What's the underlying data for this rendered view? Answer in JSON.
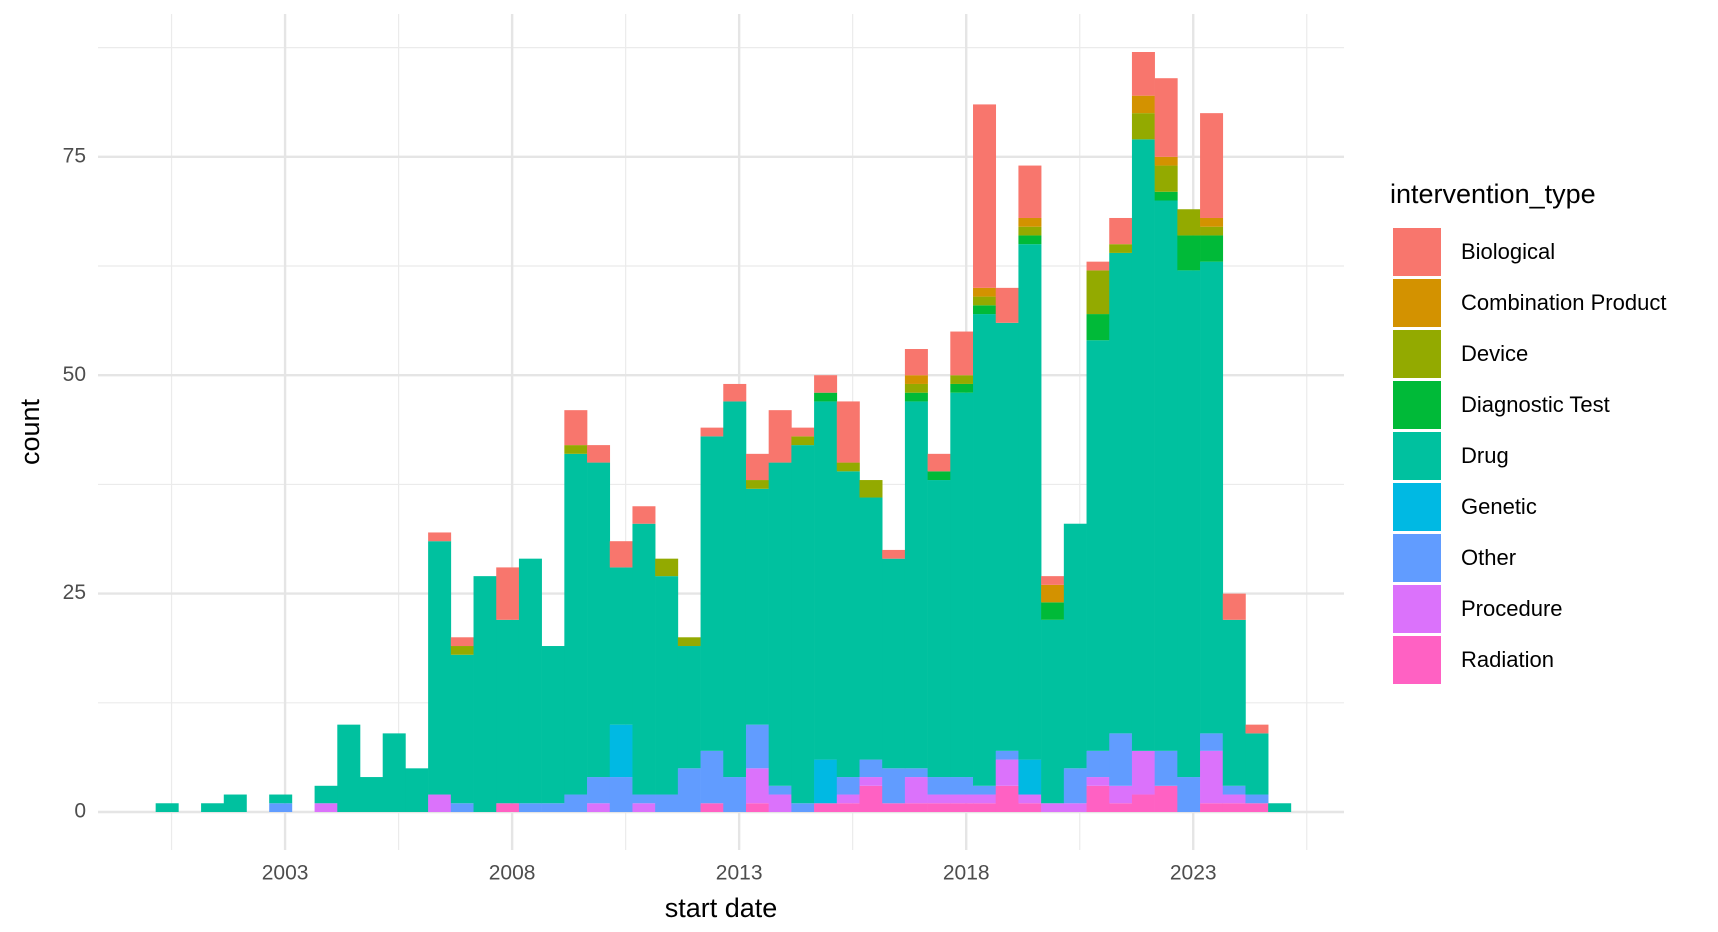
{
  "chart_data": {
    "type": "histogram",
    "stacked": true,
    "xlabel": "start date",
    "ylabel": "count",
    "legend_title": "intervention_type",
    "legend_position": "right",
    "grid": true,
    "bins": [
      2000.15,
      2000.65,
      2001.15,
      2001.65,
      2002.15,
      2002.65,
      2003.15,
      2003.65,
      2004.15,
      2004.65,
      2005.15,
      2005.65,
      2006.15,
      2006.65,
      2007.15,
      2007.65,
      2008.15,
      2008.65,
      2009.15,
      2009.65,
      2010.15,
      2010.65,
      2011.15,
      2011.65,
      2012.15,
      2012.65,
      2013.15,
      2013.65,
      2014.15,
      2014.65,
      2015.15,
      2015.65,
      2016.15,
      2016.65,
      2017.15,
      2017.65,
      2018.15,
      2018.65,
      2019.15,
      2019.65,
      2020.15,
      2020.65,
      2021.15,
      2021.65,
      2022.15,
      2022.65,
      2023.15,
      2023.65,
      2024.15,
      2024.65,
      2025.15
    ],
    "xlim": [
      1998.88,
      2026.32
    ],
    "xticks": [
      2003,
      2008,
      2013,
      2018,
      2023
    ],
    "ylim": [
      -4.35,
      91.35
    ],
    "yticks": [
      0,
      25,
      50,
      75
    ],
    "series": [
      {
        "name": "Biological",
        "color": "#F8766D",
        "values": [
          0,
          0,
          0,
          0,
          0,
          0,
          0,
          0,
          0,
          0,
          0,
          0,
          1,
          1,
          0,
          6,
          0,
          0,
          4,
          2,
          3,
          2,
          0,
          0,
          1,
          2,
          3,
          6,
          1,
          2,
          7,
          0,
          1,
          3,
          2,
          5,
          21,
          4,
          6,
          1,
          0,
          1,
          3,
          5,
          9,
          0,
          12,
          3,
          1,
          0
        ]
      },
      {
        "name": "Combination Product",
        "color": "#D39200",
        "values": [
          0,
          0,
          0,
          0,
          0,
          0,
          0,
          0,
          0,
          0,
          0,
          0,
          0,
          0,
          0,
          0,
          0,
          0,
          0,
          0,
          0,
          0,
          0,
          0,
          0,
          0,
          0,
          0,
          0,
          0,
          0,
          0,
          0,
          1,
          0,
          0,
          1,
          0,
          1,
          2,
          0,
          0,
          0,
          2,
          1,
          0,
          1,
          0,
          0,
          0
        ]
      },
      {
        "name": "Device",
        "color": "#93AA00",
        "values": [
          0,
          0,
          0,
          0,
          0,
          0,
          0,
          0,
          0,
          0,
          0,
          0,
          0,
          1,
          0,
          0,
          0,
          0,
          1,
          0,
          0,
          0,
          2,
          1,
          0,
          0,
          1,
          0,
          1,
          0,
          1,
          2,
          0,
          1,
          0,
          1,
          1,
          0,
          1,
          0,
          0,
          5,
          1,
          3,
          3,
          3,
          1,
          0,
          0,
          0
        ]
      },
      {
        "name": "Diagnostic Test",
        "color": "#00BA38",
        "values": [
          0,
          0,
          0,
          0,
          0,
          0,
          0,
          0,
          0,
          0,
          0,
          0,
          0,
          0,
          0,
          0,
          0,
          0,
          0,
          0,
          0,
          0,
          0,
          0,
          0,
          0,
          0,
          0,
          0,
          1,
          0,
          0,
          0,
          1,
          1,
          1,
          1,
          0,
          1,
          2,
          0,
          3,
          0,
          0,
          1,
          4,
          3,
          0,
          0,
          0
        ]
      },
      {
        "name": "Drug",
        "color": "#00C19F",
        "values": [
          1,
          0,
          1,
          2,
          0,
          1,
          0,
          2,
          10,
          4,
          9,
          5,
          29,
          17,
          27,
          21,
          28,
          18,
          39,
          36,
          18,
          31,
          25,
          14,
          36,
          43,
          27,
          37,
          41,
          41,
          35,
          30,
          24,
          42,
          34,
          44,
          54,
          49,
          59,
          21,
          28,
          47,
          55,
          70,
          63,
          58,
          54,
          19,
          7,
          1
        ]
      },
      {
        "name": "Genetic",
        "color": "#00B9E3",
        "values": [
          0,
          0,
          0,
          0,
          0,
          0,
          0,
          0,
          0,
          0,
          0,
          0,
          0,
          0,
          0,
          0,
          0,
          0,
          0,
          0,
          6,
          0,
          0,
          0,
          0,
          0,
          0,
          0,
          0,
          5,
          0,
          0,
          0,
          0,
          0,
          0,
          0,
          0,
          4,
          0,
          0,
          0,
          0,
          0,
          0,
          0,
          0,
          0,
          0,
          0
        ]
      },
      {
        "name": "Other",
        "color": "#619CFF",
        "values": [
          0,
          0,
          0,
          0,
          0,
          1,
          0,
          0,
          0,
          0,
          0,
          0,
          0,
          1,
          0,
          0,
          1,
          1,
          2,
          3,
          4,
          1,
          2,
          5,
          6,
          4,
          5,
          1,
          1,
          0,
          2,
          2,
          4,
          1,
          2,
          2,
          1,
          1,
          0,
          0,
          4,
          3,
          6,
          0,
          4,
          4,
          2,
          1,
          1,
          0
        ]
      },
      {
        "name": "Procedure",
        "color": "#DB72FB",
        "values": [
          0,
          0,
          0,
          0,
          0,
          0,
          0,
          1,
          0,
          0,
          0,
          0,
          2,
          0,
          0,
          0,
          0,
          0,
          0,
          1,
          0,
          1,
          0,
          0,
          0,
          0,
          4,
          2,
          0,
          0,
          1,
          1,
          0,
          3,
          1,
          1,
          1,
          3,
          1,
          1,
          1,
          1,
          2,
          5,
          0,
          0,
          6,
          1,
          0,
          0
        ]
      },
      {
        "name": "Radiation",
        "color": "#FF61C3",
        "values": [
          0,
          0,
          0,
          0,
          0,
          0,
          0,
          0,
          0,
          0,
          0,
          0,
          0,
          0,
          0,
          1,
          0,
          0,
          0,
          0,
          0,
          0,
          0,
          0,
          1,
          0,
          1,
          0,
          0,
          1,
          1,
          3,
          1,
          1,
          1,
          1,
          1,
          3,
          1,
          0,
          0,
          3,
          1,
          2,
          3,
          0,
          1,
          1,
          1,
          0
        ]
      }
    ]
  }
}
